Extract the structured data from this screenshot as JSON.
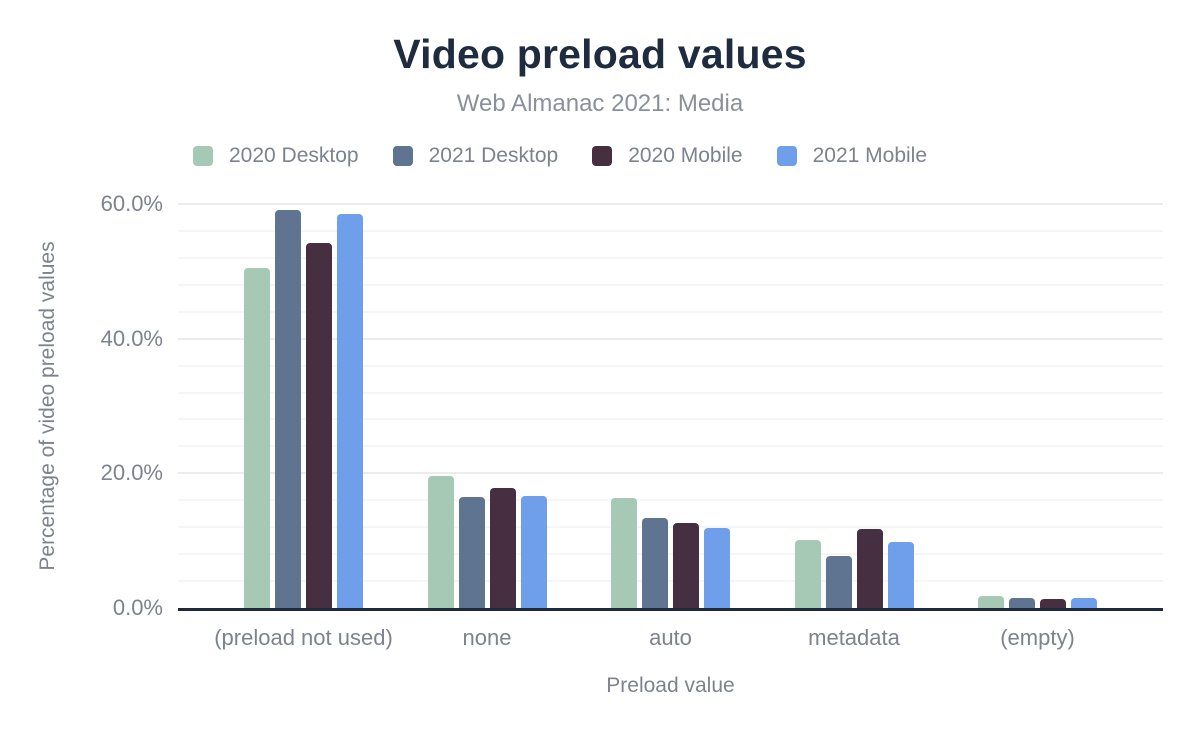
{
  "chart_data": {
    "type": "bar",
    "title": "Video preload values",
    "subtitle": "Web Almanac 2021: Media",
    "categories": [
      "(preload not used)",
      "none",
      "auto",
      "metadata",
      "(empty)"
    ],
    "series": [
      {
        "name": "2020 Desktop",
        "color": "#a5c9b5",
        "values": [
          50.5,
          19.6,
          16.3,
          10.1,
          1.8
        ]
      },
      {
        "name": "2021 Desktop",
        "color": "#5f7490",
        "values": [
          59.1,
          16.5,
          13.3,
          7.7,
          1.5
        ]
      },
      {
        "name": "2020 Mobile",
        "color": "#472f42",
        "values": [
          54.2,
          17.8,
          12.7,
          11.7,
          1.4
        ]
      },
      {
        "name": "2021 Mobile",
        "color": "#6f9eea",
        "values": [
          58.5,
          16.6,
          11.9,
          9.8,
          1.5
        ]
      }
    ],
    "xlabel": "Preload value",
    "ylabel": "Percentage of video preload values",
    "ylim": [
      0,
      60
    ],
    "yticks": [
      0,
      20,
      40,
      60
    ],
    "ytick_labels": [
      "0.0%",
      "20.0%",
      "40.0%",
      "60.0%"
    ],
    "minor_gridline_step": 4,
    "grid": true,
    "legend_position": "top"
  },
  "colors": {
    "title_text": "#1f2b3e",
    "subtitle_text": "#8a909b",
    "axis_text": "#7d838e",
    "axis_line": "#1e2a3a",
    "major_gridline": "#ececec",
    "minor_gridline": "#f6f6f6",
    "background": "#ffffff"
  }
}
